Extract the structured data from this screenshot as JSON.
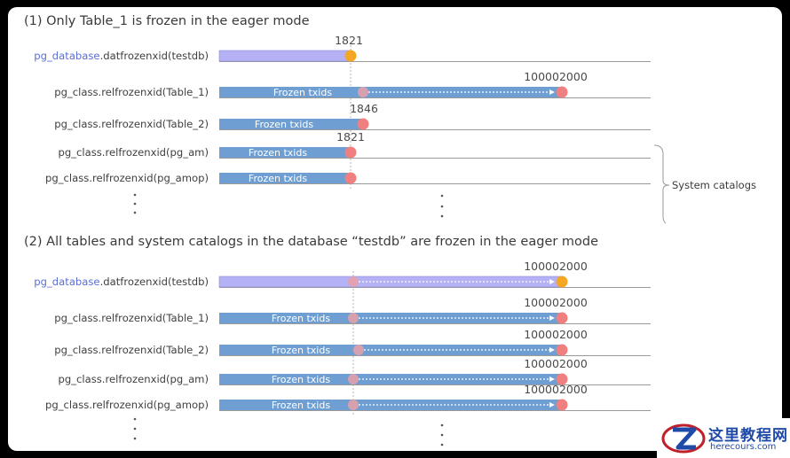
{
  "sections": [
    {
      "title": "(1) Only Table_1 is frozen in the eager mode",
      "rows": [
        {
          "label_prefix": "pg_database",
          "label_rest": ".datfrozenxid(testdb)",
          "value_label": "1821",
          "bar_text": "",
          "kind": "db-partial"
        },
        {
          "label_prefix": "",
          "label_rest": "pg_class.relfrozenxid(Table_1)",
          "value_label": "100002000",
          "bar_text": "Frozen txids",
          "kind": "full"
        },
        {
          "label_prefix": "",
          "label_rest": "pg_class.relfrozenxid(Table_2)",
          "value_label": "1846",
          "bar_text": "Frozen txids",
          "kind": "short"
        },
        {
          "label_prefix": "",
          "label_rest": "pg_class.relfrozenxid(pg_am)",
          "value_label": "1821",
          "bar_text": "Frozen txids",
          "kind": "short"
        },
        {
          "label_prefix": "",
          "label_rest": "pg_class.relfrozenxid(pg_amop)",
          "value_label": "",
          "bar_text": "Frozen txids",
          "kind": "short"
        }
      ],
      "side_label": "System catalogs"
    },
    {
      "title": "(2) All tables and system catalogs in the database “testdb” are frozen in the eager mode",
      "rows": [
        {
          "label_prefix": "pg_database",
          "label_rest": ".datfrozenxid(testdb)",
          "value_label": "100002000",
          "bar_text": "",
          "kind": "db-full"
        },
        {
          "label_prefix": "",
          "label_rest": "pg_class.relfrozenxid(Table_1)",
          "value_label": "100002000",
          "bar_text": "Frozen txids",
          "kind": "full"
        },
        {
          "label_prefix": "",
          "label_rest": "pg_class.relfrozenxid(Table_2)",
          "value_label": "100002000",
          "bar_text": "Frozen txids",
          "kind": "full"
        },
        {
          "label_prefix": "",
          "label_rest": "pg_class.relfrozenxid(pg_am)",
          "value_label": "100002000",
          "bar_text": "Frozen txids",
          "kind": "full"
        },
        {
          "label_prefix": "",
          "label_rest": "pg_class.relfrozenxid(pg_amop)",
          "value_label": "100002000",
          "bar_text": "Frozen txids",
          "kind": "full"
        }
      ]
    }
  ],
  "colors": {
    "table_bar": "#6f9fd2",
    "db_bar": "#b4b2f4",
    "db_label": "#5b6fd6",
    "marker_red": "#f08080",
    "marker_orange": "#f5a623"
  },
  "watermark": {
    "name": "这里教程网",
    "url": "herecours.com"
  }
}
